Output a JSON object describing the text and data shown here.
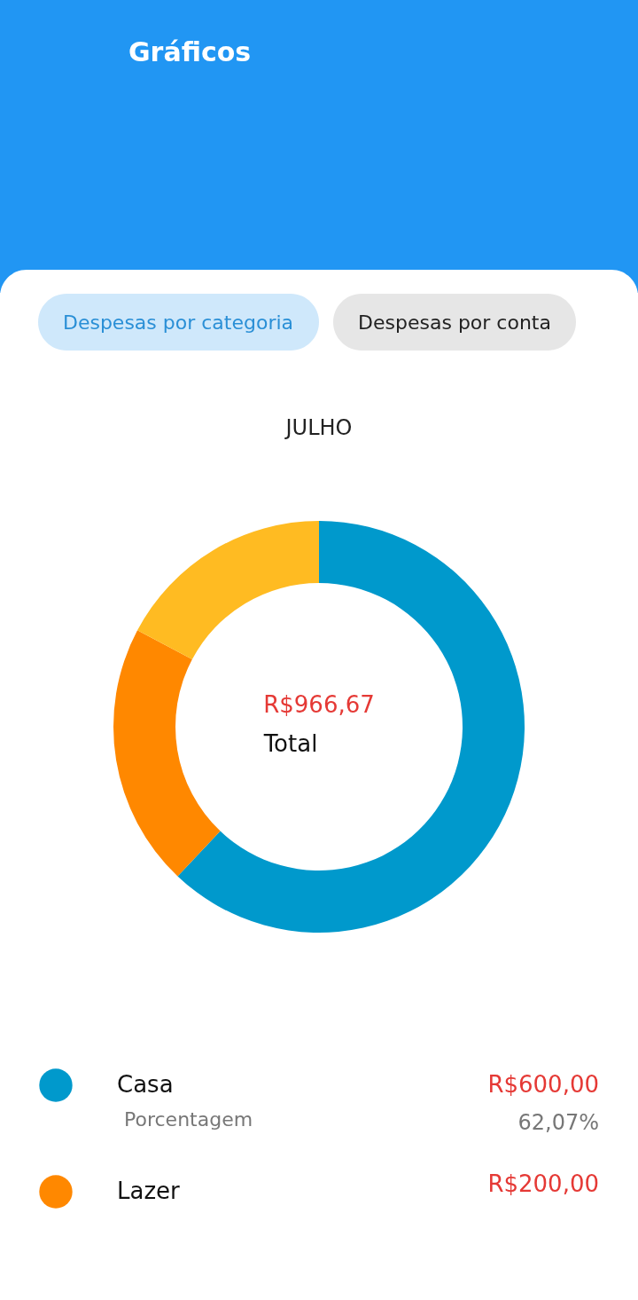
{
  "chart_data": {
    "type": "donut",
    "title": "Gráficos",
    "subtitle": "JULHO",
    "categories": [
      "Casa",
      "Lazer",
      null
    ],
    "values": [
      62.07,
      20.69,
      17.24
    ],
    "colors": [
      "#0099cc",
      "#ff8800",
      "#ffbb22"
    ],
    "legend": "bottom",
    "annotations": [
      "R$966,67",
      "Total",
      "Despesas por categoria",
      "Despesas por conta",
      "Porcentagem",
      "62,07%",
      "R$600,00",
      "R$200,00"
    ]
  }
}
